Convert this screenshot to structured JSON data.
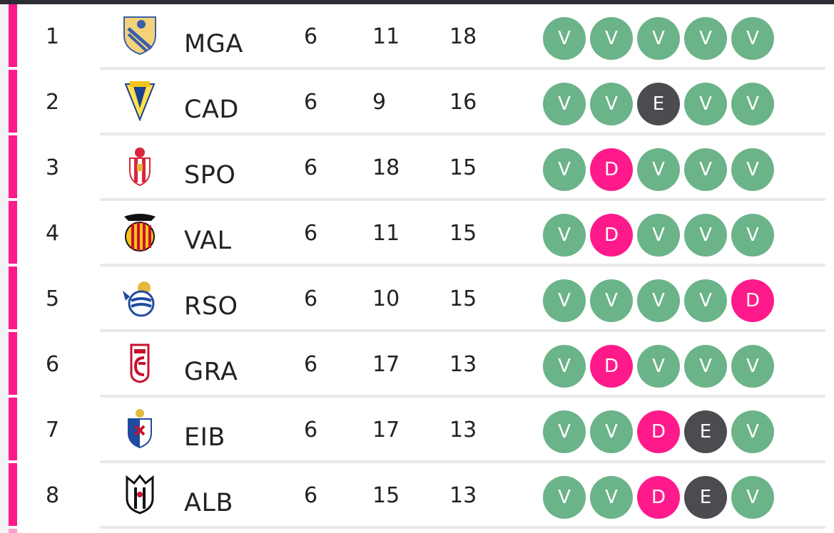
{
  "colors": {
    "win": "#6bb389",
    "draw": "#4b4c50",
    "loss": "#ff1a8c",
    "position_indicator": "#ff1a8c"
  },
  "standings": [
    {
      "pos": "1",
      "crest": "malaga-crest-icon",
      "team": "MGA",
      "played": "6",
      "diff": "11",
      "pts": "18",
      "form": [
        "V",
        "V",
        "V",
        "V",
        "V"
      ]
    },
    {
      "pos": "2",
      "crest": "cadiz-crest-icon",
      "team": "CAD",
      "played": "6",
      "diff": "9",
      "pts": "16",
      "form": [
        "V",
        "V",
        "E",
        "V",
        "V"
      ]
    },
    {
      "pos": "3",
      "crest": "sporting-crest-icon",
      "team": "SPO",
      "played": "6",
      "diff": "18",
      "pts": "15",
      "form": [
        "V",
        "D",
        "V",
        "V",
        "V"
      ]
    },
    {
      "pos": "4",
      "crest": "valencia-crest-icon",
      "team": "VAL",
      "played": "6",
      "diff": "11",
      "pts": "15",
      "form": [
        "V",
        "D",
        "V",
        "V",
        "V"
      ]
    },
    {
      "pos": "5",
      "crest": "real-sociedad-crest-icon",
      "team": "RSO",
      "played": "6",
      "diff": "10",
      "pts": "15",
      "form": [
        "V",
        "V",
        "V",
        "V",
        "D"
      ]
    },
    {
      "pos": "6",
      "crest": "granada-crest-icon",
      "team": "GRA",
      "played": "6",
      "diff": "17",
      "pts": "13",
      "form": [
        "V",
        "D",
        "V",
        "V",
        "V"
      ]
    },
    {
      "pos": "7",
      "crest": "eibar-crest-icon",
      "team": "EIB",
      "played": "6",
      "diff": "17",
      "pts": "13",
      "form": [
        "V",
        "V",
        "D",
        "E",
        "V"
      ]
    },
    {
      "pos": "8",
      "crest": "albacete-crest-icon",
      "team": "ALB",
      "played": "6",
      "diff": "15",
      "pts": "13",
      "form": [
        "V",
        "V",
        "D",
        "E",
        "V"
      ]
    }
  ]
}
